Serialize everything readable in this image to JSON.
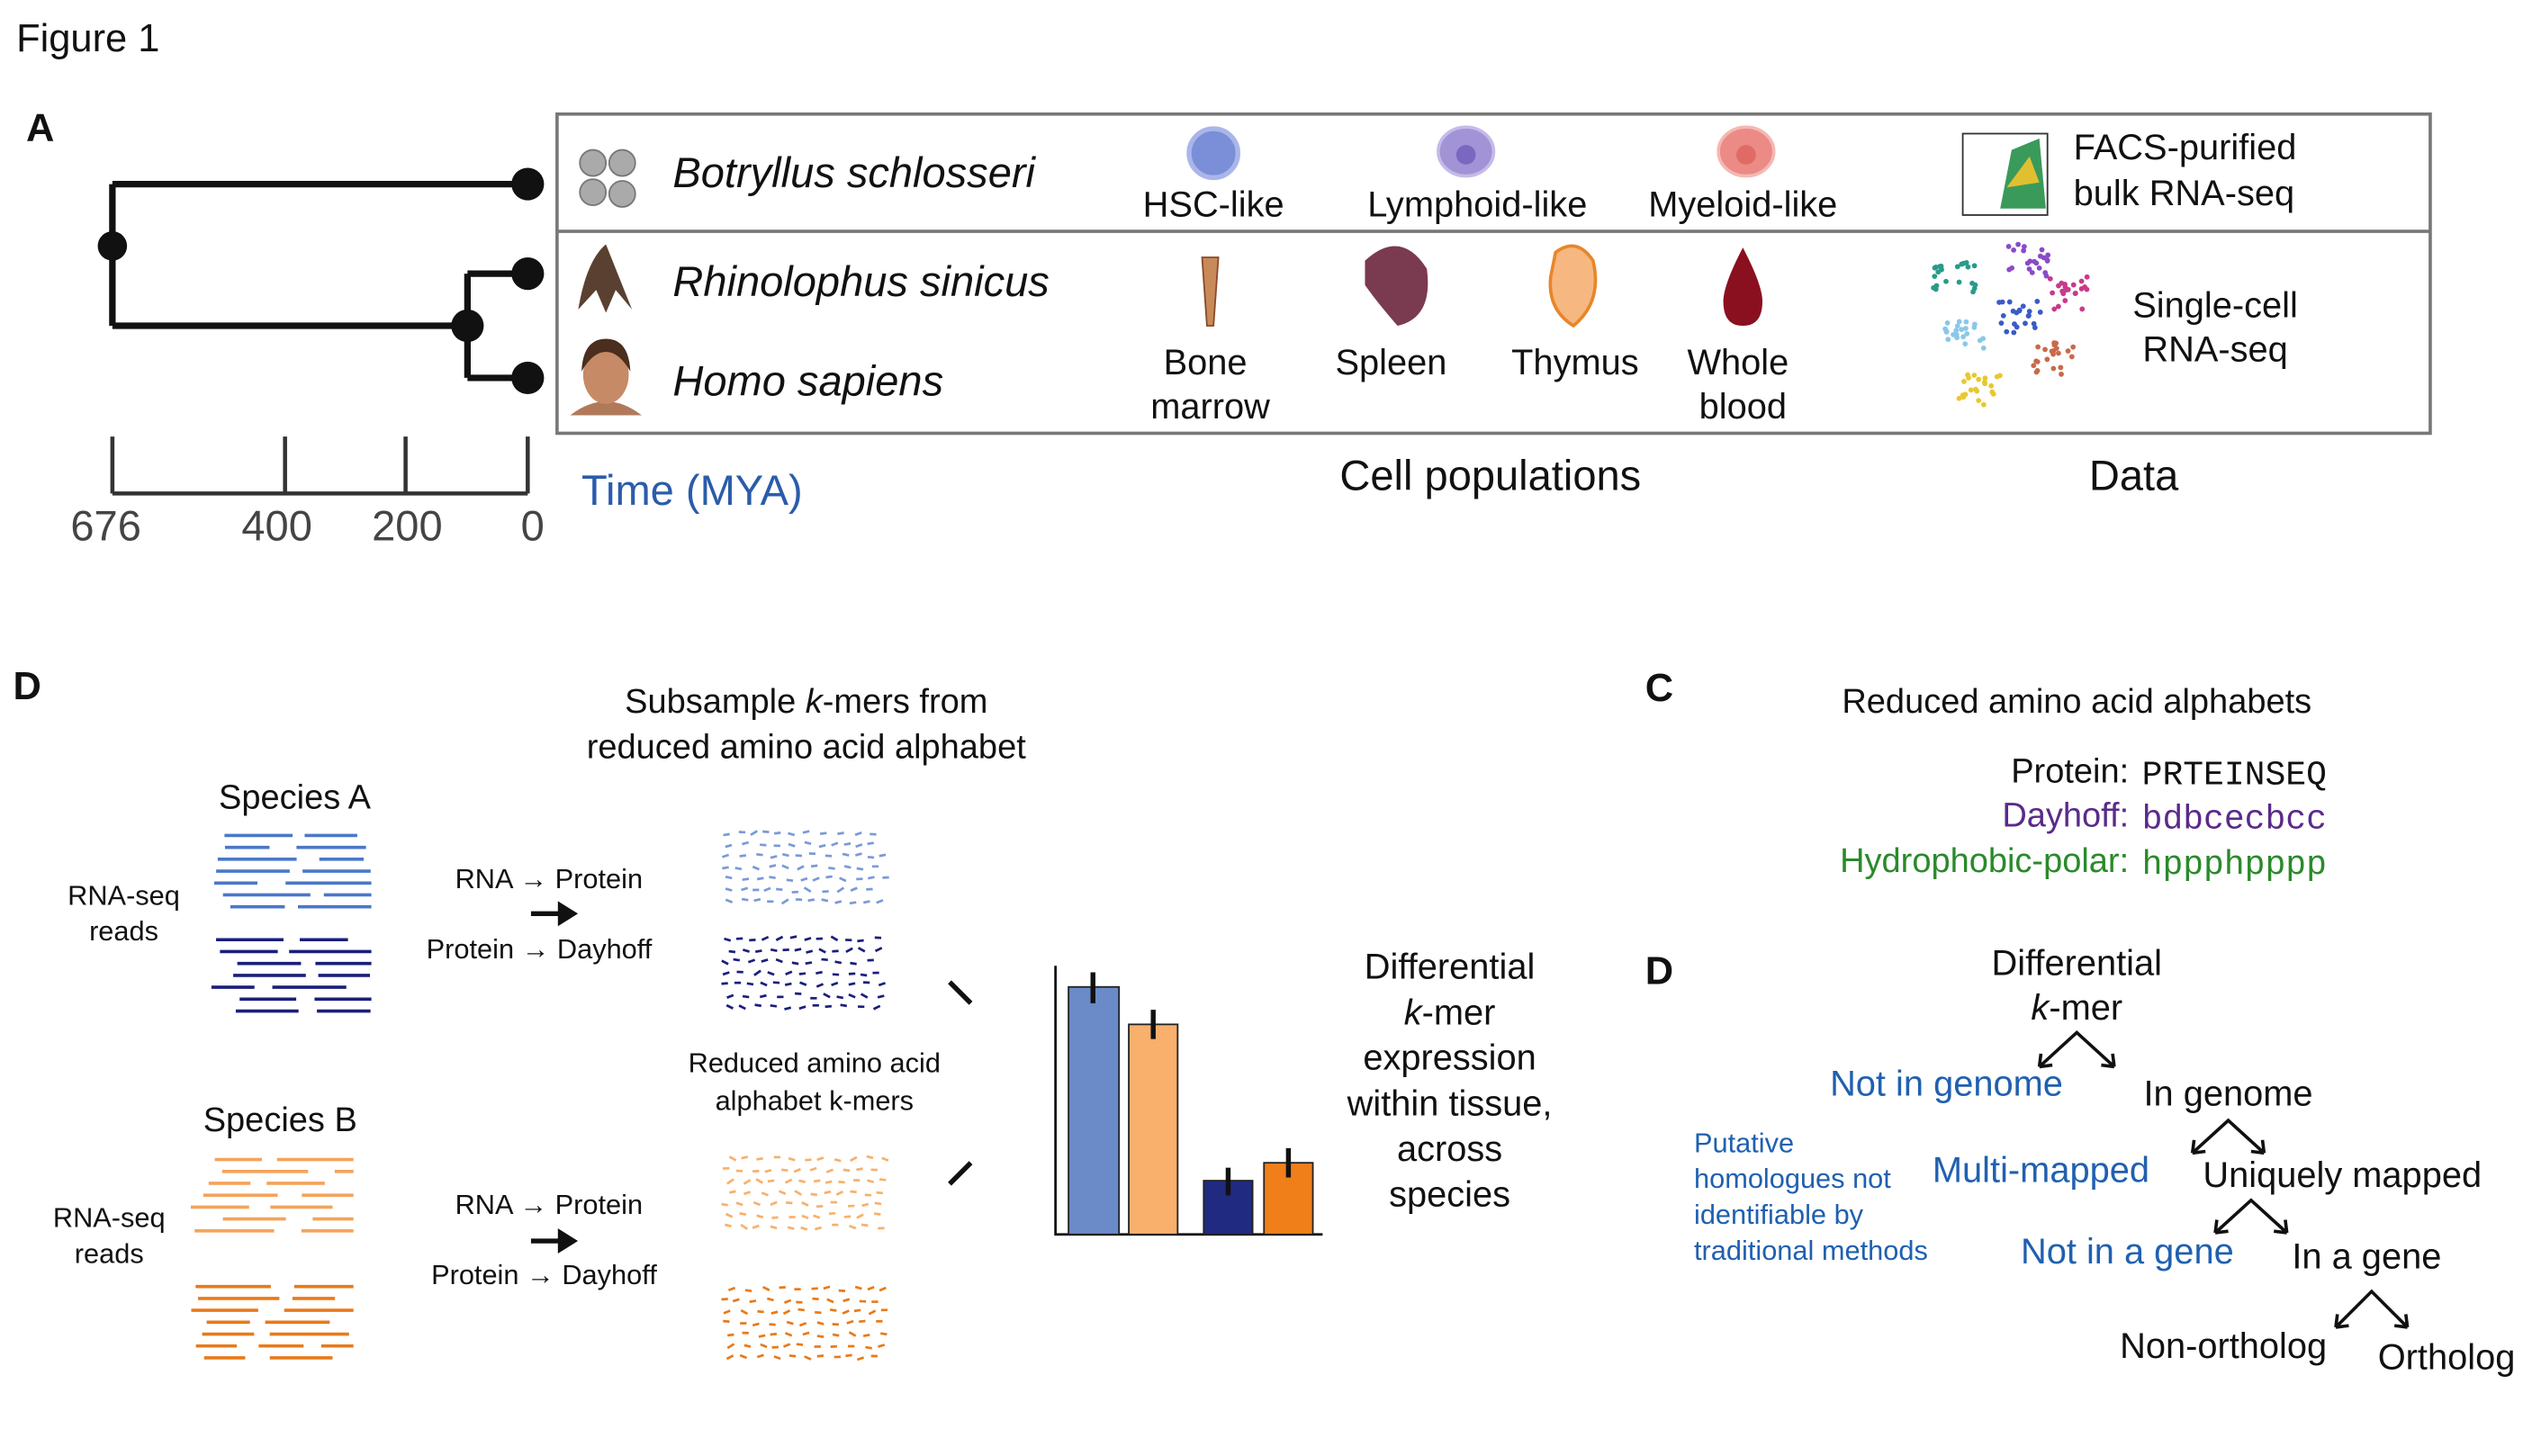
{
  "figure_title": "Figure 1",
  "panel_a": {
    "label": "A",
    "species": [
      "Botryllus schlosseri",
      "Rhinolophus sinicus",
      "Homo sapiens"
    ],
    "time_axis": {
      "label": "Time (MYA)",
      "ticks": [
        "676",
        "400",
        "200",
        "0"
      ]
    },
    "cell_types": [
      "HSC-like",
      "Lymphoid-like",
      "Myeloid-like"
    ],
    "tissues": [
      [
        "Bone",
        "marrow"
      ],
      [
        "Spleen"
      ],
      [
        "Thymus"
      ],
      [
        "Whole",
        "blood"
      ]
    ],
    "data_types": [
      [
        "FACS-purified",
        "bulk RNA-seq"
      ],
      [
        "Single-cell",
        "RNA-seq"
      ]
    ],
    "column_headers": [
      "Cell populations",
      "Data"
    ]
  },
  "panel_d_workflow": {
    "label": "D",
    "header": {
      "pre": "Subsample ",
      "italic": "k",
      "post": "-mers from",
      "line2": "reduced amino acid alphabet"
    },
    "species": [
      {
        "name": "Species A",
        "reads_label": [
          "RNA-seq",
          "reads"
        ],
        "steps": [
          "RNA → Protein",
          "Protein → Dayhoff"
        ]
      },
      {
        "name": "Species B",
        "reads_label": [
          "RNA-seq",
          "reads"
        ],
        "steps": [
          "RNA → Protein",
          "Protein → Dayhoff"
        ]
      }
    ],
    "kmer_label": [
      "Reduced amino acid",
      "alphabet k-mers"
    ],
    "result": {
      "line1": "Differential",
      "italic": "k",
      "post": "-mer",
      "rest": [
        "expression",
        "within tissue,",
        "across",
        "species"
      ]
    }
  },
  "panel_c": {
    "label": "C",
    "title": "Reduced amino acid alphabets",
    "rows": [
      {
        "name": "Protein:",
        "sequence": "PRTEINSEQ"
      },
      {
        "name": "Dayhoff:",
        "sequence": "bdbcecbcc"
      },
      {
        "name": "Hydrophobic-polar:",
        "sequence": "hppphpppp"
      }
    ]
  },
  "panel_d_tree": {
    "label": "D",
    "root": {
      "line1": "Differential",
      "italic": "k",
      "post": "-mer"
    },
    "nodes": [
      "Not in genome",
      "In genome",
      "Multi-mapped",
      "Uniquely mapped",
      "Not in a gene",
      "In a gene",
      "Non-ortholog",
      "Ortholog"
    ],
    "note": [
      "Putative",
      "homologues not",
      "identifiable by",
      "traditional methods"
    ]
  }
}
